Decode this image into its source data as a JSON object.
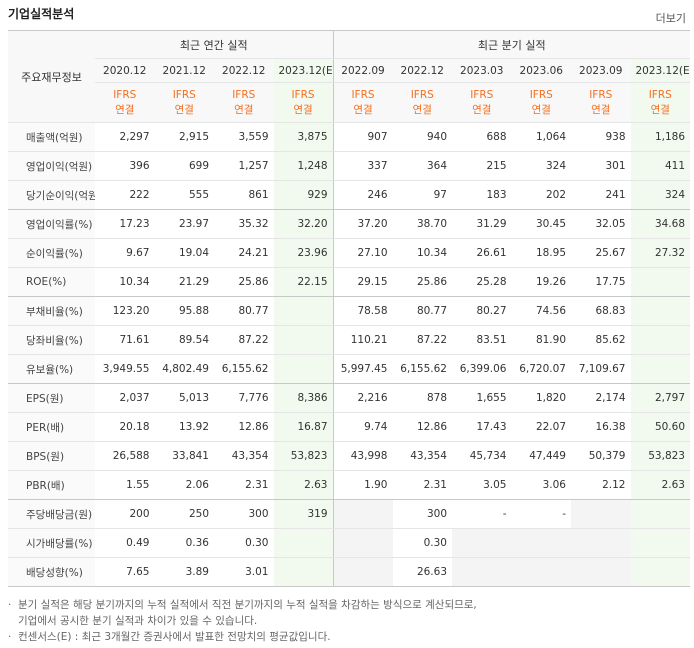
{
  "header": {
    "title": "기업실적분석",
    "more": "더보기"
  },
  "table": {
    "corner": "주요재무정보",
    "groups": [
      "최근 연간 실적",
      "최근 분기 실적"
    ],
    "periods": [
      "2020.12",
      "2021.12",
      "2022.12",
      "2023.12(E)",
      "2022.09",
      "2022.12",
      "2023.03",
      "2023.06",
      "2023.09",
      "2023.12(E)"
    ],
    "basis": [
      [
        "IFRS",
        "연결"
      ],
      [
        "IFRS",
        "연결"
      ],
      [
        "IFRS",
        "연결"
      ],
      [
        "IFRS",
        "연결"
      ],
      [
        "IFRS",
        "연결"
      ],
      [
        "IFRS",
        "연결"
      ],
      [
        "IFRS",
        "연결"
      ],
      [
        "IFRS",
        "연결"
      ],
      [
        "IFRS",
        "연결"
      ],
      [
        "IFRS",
        "연결"
      ]
    ],
    "rows": [
      {
        "label": "매출액(억원)",
        "values": [
          "2,297",
          "2,915",
          "3,559",
          "3,875",
          "907",
          "940",
          "688",
          "1,064",
          "938",
          "1,186"
        ]
      },
      {
        "label": "영업이익(억원)",
        "values": [
          "396",
          "699",
          "1,257",
          "1,248",
          "337",
          "364",
          "215",
          "324",
          "301",
          "411"
        ]
      },
      {
        "label": "당기순이익(억원)",
        "values": [
          "222",
          "555",
          "861",
          "929",
          "246",
          "97",
          "183",
          "202",
          "241",
          "324"
        ]
      },
      {
        "label": "영업이익률(%)",
        "values": [
          "17.23",
          "23.97",
          "35.32",
          "32.20",
          "37.20",
          "38.70",
          "31.29",
          "30.45",
          "32.05",
          "34.68"
        ]
      },
      {
        "label": "순이익률(%)",
        "values": [
          "9.67",
          "19.04",
          "24.21",
          "23.96",
          "27.10",
          "10.34",
          "26.61",
          "18.95",
          "25.67",
          "27.32"
        ]
      },
      {
        "label": "ROE(%)",
        "values": [
          "10.34",
          "21.29",
          "25.86",
          "22.15",
          "29.15",
          "25.86",
          "25.28",
          "19.26",
          "17.75",
          null
        ]
      },
      {
        "label": "부채비율(%)",
        "values": [
          "123.20",
          "95.88",
          "80.77",
          null,
          "78.58",
          "80.77",
          "80.27",
          "74.56",
          "68.83",
          null
        ]
      },
      {
        "label": "당좌비율(%)",
        "values": [
          "71.61",
          "89.54",
          "87.22",
          null,
          "110.21",
          "87.22",
          "83.51",
          "81.90",
          "85.62",
          null
        ]
      },
      {
        "label": "유보율(%)",
        "values": [
          "3,949.55",
          "4,802.49",
          "6,155.62",
          null,
          "5,997.45",
          "6,155.62",
          "6,399.06",
          "6,720.07",
          "7,109.67",
          null
        ]
      },
      {
        "label": "EPS(원)",
        "values": [
          "2,037",
          "5,013",
          "7,776",
          "8,386",
          "2,216",
          "878",
          "1,655",
          "1,820",
          "2,174",
          "2,797"
        ]
      },
      {
        "label": "PER(배)",
        "values": [
          "20.18",
          "13.92",
          "12.86",
          "16.87",
          "9.74",
          "12.86",
          "17.43",
          "22.07",
          "16.38",
          "50.60"
        ]
      },
      {
        "label": "BPS(원)",
        "values": [
          "26,588",
          "33,841",
          "43,354",
          "53,823",
          "43,998",
          "43,354",
          "45,734",
          "47,449",
          "50,379",
          "53,823"
        ]
      },
      {
        "label": "PBR(배)",
        "values": [
          "1.55",
          "2.06",
          "2.31",
          "2.63",
          "1.90",
          "2.31",
          "3.05",
          "3.06",
          "2.12",
          "2.63"
        ]
      },
      {
        "label": "주당배당금(원)",
        "values": [
          "200",
          "250",
          "300",
          "319",
          null,
          "300",
          "-",
          "-",
          null,
          null
        ]
      },
      {
        "label": "시가배당률(%)",
        "values": [
          "0.49",
          "0.36",
          "0.30",
          null,
          null,
          "0.30",
          null,
          null,
          null,
          null
        ]
      },
      {
        "label": "배당성향(%)",
        "values": [
          "7.65",
          "3.89",
          "3.01",
          null,
          null,
          "26.63",
          null,
          null,
          null,
          null
        ]
      }
    ]
  },
  "notes": [
    [
      "분기 실적은 해당 분기까지의 누적 실적에서 직전 분기까지의 누적 실적을 차감하는 방식으로 계산되므로,",
      "기업에서 공시한 분기 실적과 차이가 있을 수 있습니다."
    ],
    [
      "컨센서스(E) : 최근 3개월간 증권사에서 발표한 전망치의 평균값입니다."
    ]
  ]
}
